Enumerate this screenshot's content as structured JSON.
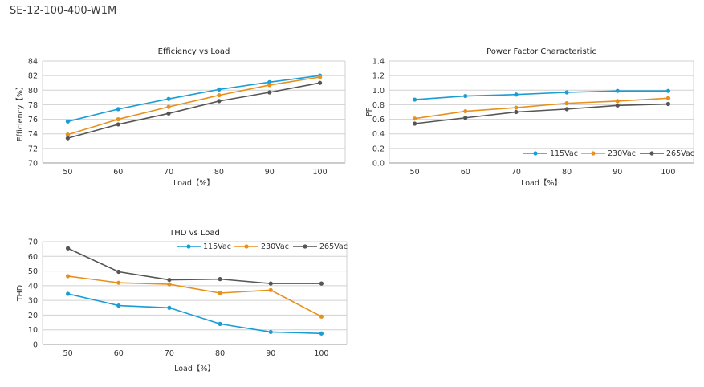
{
  "page": {
    "title": "SE-12-100-400-W1M"
  },
  "chart_data": [
    {
      "type": "line",
      "title": "Efficiency vs Load",
      "xlabel": "Load【%】",
      "ylabel": "Efficiency【%】",
      "x": [
        50,
        60,
        70,
        80,
        90,
        100
      ],
      "ylim": [
        70,
        84
      ],
      "yticks": [
        70,
        72,
        74,
        76,
        78,
        80,
        82,
        84
      ],
      "ytick_labels": [
        "70",
        "72",
        "74",
        "76",
        "78",
        "80",
        "82",
        "84"
      ],
      "grid": true,
      "legend": "none",
      "series": [
        {
          "color": "#1a9cd4",
          "values": [
            75.7,
            77.4,
            78.8,
            80.1,
            81.1,
            82.0
          ]
        },
        {
          "color": "#e8901c",
          "values": [
            73.9,
            76.0,
            77.7,
            79.3,
            80.7,
            81.8
          ]
        },
        {
          "color": "#555555",
          "values": [
            73.4,
            75.3,
            76.8,
            78.5,
            79.7,
            81.0
          ]
        }
      ]
    },
    {
      "type": "line",
      "title": "Power Factor Characteristic",
      "xlabel": "Load【%】",
      "ylabel": "PF",
      "x": [
        50,
        60,
        70,
        80,
        90,
        100
      ],
      "ylim": [
        0,
        1.4
      ],
      "yticks": [
        0,
        0.2,
        0.4,
        0.6,
        0.8,
        1.0,
        1.2,
        1.4
      ],
      "ytick_labels": [
        "0.0",
        "0.2",
        "0.4",
        "0.6",
        "0.8",
        "1.0",
        "1.2",
        "1.4"
      ],
      "grid": true,
      "legend": "bottom-right",
      "series": [
        {
          "name": "115Vac",
          "color": "#1a9cd4",
          "values": [
            0.87,
            0.92,
            0.94,
            0.97,
            0.99,
            0.99
          ]
        },
        {
          "name": "230Vac",
          "color": "#e8901c",
          "values": [
            0.61,
            0.71,
            0.76,
            0.82,
            0.85,
            0.89
          ]
        },
        {
          "name": "265Vac",
          "color": "#555555",
          "values": [
            0.54,
            0.62,
            0.7,
            0.74,
            0.79,
            0.81
          ]
        }
      ]
    },
    {
      "type": "line",
      "title": "THD vs Load",
      "xlabel": "Load【%】",
      "ylabel": "THD",
      "x": [
        50,
        60,
        70,
        80,
        90,
        100
      ],
      "ylim": [
        0,
        70
      ],
      "yticks": [
        0,
        10,
        20,
        30,
        40,
        50,
        60,
        70
      ],
      "ytick_labels": [
        "0",
        "10",
        "20",
        "30",
        "40",
        "50",
        "60",
        "70"
      ],
      "grid": true,
      "legend": "top-right",
      "series": [
        {
          "name": "115Vac",
          "color": "#1a9cd4",
          "values": [
            34.5,
            26.5,
            25.0,
            14.0,
            8.5,
            7.5
          ]
        },
        {
          "name": "230Vac",
          "color": "#e8901c",
          "values": [
            46.5,
            42.0,
            41.0,
            35.0,
            37.0,
            19.0
          ]
        },
        {
          "name": "265Vac",
          "color": "#555555",
          "values": [
            65.5,
            49.5,
            44.0,
            44.5,
            41.5,
            41.5
          ]
        }
      ]
    }
  ]
}
